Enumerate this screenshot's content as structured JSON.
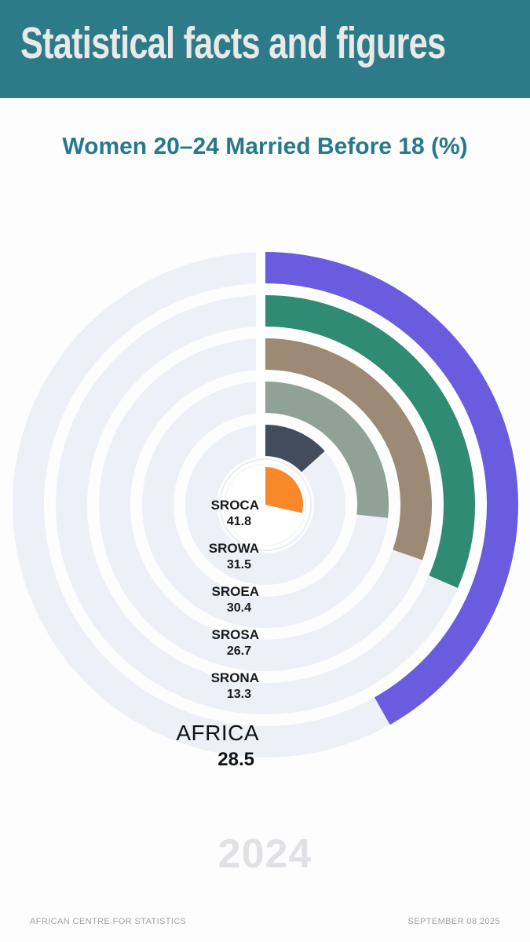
{
  "header": {
    "title": "Statistical facts and figures",
    "bg_color": "#2d7b89",
    "text_color": "#e9eae8"
  },
  "subtitle": {
    "text": "Women 20–24 Married Before 18 (%)",
    "color": "#27798a"
  },
  "chart_data": {
    "type": "bar",
    "layout": "radial-concentric-rings",
    "title": "Women 20–24 Married Before 18 (%)",
    "start_angle_deg": 0,
    "direction": "clockwise",
    "scale_max": 100,
    "track_color": "#edf0f6",
    "rings": [
      {
        "label": "SROCA",
        "value": 41.8,
        "color": "#6a5cdf"
      },
      {
        "label": "SROWA",
        "value": 31.5,
        "color": "#2f8b72"
      },
      {
        "label": "SROEA",
        "value": 30.4,
        "color": "#9c8a74"
      },
      {
        "label": "SROSA",
        "value": 26.7,
        "color": "#90a197"
      },
      {
        "label": "SRONA",
        "value": 13.3,
        "color": "#424c5c"
      }
    ],
    "center": {
      "label": "AFRICA",
      "value": 28.5,
      "color": "#f9882b"
    }
  },
  "year_watermark": {
    "text": "2024",
    "color": "#e0e1e4"
  },
  "footer": {
    "left": "AFRICAN CENTRE FOR STATISTICS",
    "right": "SEPTEMBER 08 2025",
    "color": "#a2a2a2"
  }
}
